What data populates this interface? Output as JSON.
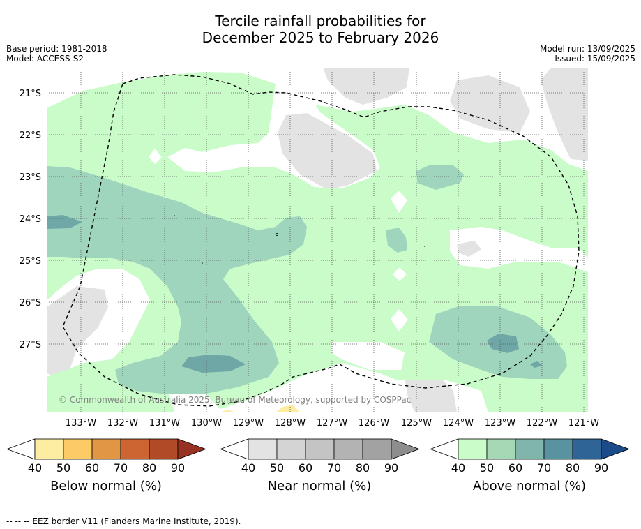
{
  "title_line1": "Tercile rainfall probabilities for",
  "title_line2": "December 2025 to February 2026",
  "base_period": "Base period: 1981-2018",
  "model": "Model: ACCESS-S2",
  "model_run": "Model run: 13/09/2025",
  "issued": "Issued: 15/09/2025",
  "credit": "© Commonwealth of Australia 2025, Bureau of Meteorology, supported by COSPPac",
  "lat_labels": [
    "21°S",
    "22°S",
    "23°S",
    "24°S",
    "25°S",
    "26°S",
    "27°S"
  ],
  "lon_labels": [
    "133°W",
    "132°W",
    "131°W",
    "130°W",
    "129°W",
    "128°W",
    "127°W",
    "126°W",
    "125°W",
    "124°W",
    "123°W",
    "122°W",
    "121°W"
  ],
  "colorbars": {
    "below": {
      "label": "Below normal (%)",
      "ticks": [
        "40",
        "50",
        "60",
        "70",
        "80",
        "90"
      ],
      "colors": [
        "#ffffff",
        "#fdeda0",
        "#fdcb66",
        "#e19646",
        "#cd6533",
        "#b04a27",
        "#973222"
      ]
    },
    "near": {
      "label": "Near normal (%)",
      "ticks": [
        "40",
        "50",
        "60",
        "70",
        "80",
        "90"
      ],
      "colors": [
        "#ffffff",
        "#e3e3e3",
        "#d4d4d4",
        "#c4c4c4",
        "#b3b3b3",
        "#a2a2a2",
        "#8d8d8d"
      ]
    },
    "above": {
      "label": "Above normal (%)",
      "ticks": [
        "40",
        "50",
        "60",
        "70",
        "80",
        "90"
      ],
      "colors": [
        "#ffffff",
        "#c9fcc8",
        "#a5d9b5",
        "#7fb5ab",
        "#5992a0",
        "#2f6496",
        "#1b4b88"
      ]
    }
  },
  "footer": "--  --  -- EEZ border V11 (Flanders Marine Institute, 2019)."
}
